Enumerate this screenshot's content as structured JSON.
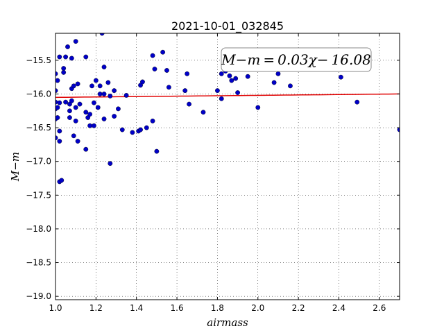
{
  "chart_data": {
    "type": "scatter",
    "title": "2021-10-01_032845",
    "xlabel": "airmass",
    "ylabel": "M−m",
    "xlim": [
      1.0,
      2.7
    ],
    "ylim": [
      -19.05,
      -15.1
    ],
    "x_ticks": [
      1.0,
      1.2,
      1.4,
      1.6,
      1.8,
      2.0,
      2.2,
      2.4,
      2.6
    ],
    "x_tick_labels": [
      "1.0",
      "1.2",
      "1.4",
      "1.6",
      "1.8",
      "2.0",
      "2.2",
      "2.4",
      "2.6"
    ],
    "y_ticks": [
      -15.5,
      -16.0,
      -16.5,
      -17.0,
      -17.5,
      -18.0,
      -18.5,
      -19.0
    ],
    "y_tick_labels": [
      "−15.5",
      "−16.0",
      "−16.5",
      "−17.0",
      "−17.5",
      "−18.0",
      "−18.5",
      "−19.0"
    ],
    "grid": true,
    "annotation": "M−m = 0.03χ− 16.08",
    "fit_line": {
      "slope": 0.03,
      "intercept": -16.08,
      "color": "#e00000"
    },
    "marker_color": "#0000c8",
    "points": [
      [
        1.0,
        -15.7
      ],
      [
        1.0,
        -15.95
      ],
      [
        1.0,
        -16.12
      ],
      [
        1.0,
        -16.22
      ],
      [
        1.0,
        -16.37
      ],
      [
        1.0,
        -16.65
      ],
      [
        1.01,
        -15.8
      ],
      [
        1.01,
        -16.2
      ],
      [
        1.01,
        -16.35
      ],
      [
        1.02,
        -15.45
      ],
      [
        1.02,
        -16.13
      ],
      [
        1.02,
        -16.55
      ],
      [
        1.02,
        -16.7
      ],
      [
        1.02,
        -17.3
      ],
      [
        1.03,
        -17.28
      ],
      [
        1.04,
        -15.62
      ],
      [
        1.04,
        -15.68
      ],
      [
        1.05,
        -15.45
      ],
      [
        1.05,
        -16.12
      ],
      [
        1.06,
        -15.3
      ],
      [
        1.07,
        -16.15
      ],
      [
        1.07,
        -16.25
      ],
      [
        1.07,
        -16.35
      ],
      [
        1.08,
        -15.47
      ],
      [
        1.08,
        -16.1
      ],
      [
        1.08,
        -15.92
      ],
      [
        1.09,
        -16.62
      ],
      [
        1.09,
        -15.88
      ],
      [
        1.1,
        -15.22
      ],
      [
        1.1,
        -16.2
      ],
      [
        1.1,
        -16.4
      ],
      [
        1.11,
        -16.7
      ],
      [
        1.11,
        -15.85
      ],
      [
        1.12,
        -16.15
      ],
      [
        1.15,
        -15.45
      ],
      [
        1.15,
        -16.27
      ],
      [
        1.15,
        -16.82
      ],
      [
        1.16,
        -16.35
      ],
      [
        1.17,
        -16.3
      ],
      [
        1.17,
        -16.47
      ],
      [
        1.18,
        -15.88
      ],
      [
        1.19,
        -16.47
      ],
      [
        1.19,
        -16.13
      ],
      [
        1.2,
        -15.8
      ],
      [
        1.21,
        -16.2
      ],
      [
        1.22,
        -15.88
      ],
      [
        1.22,
        -16.0
      ],
      [
        1.23,
        -15.1
      ],
      [
        1.24,
        -16.0
      ],
      [
        1.24,
        -16.37
      ],
      [
        1.24,
        -15.6
      ],
      [
        1.26,
        -15.83
      ],
      [
        1.27,
        -16.03
      ],
      [
        1.27,
        -17.03
      ],
      [
        1.29,
        -15.95
      ],
      [
        1.29,
        -16.33
      ],
      [
        1.31,
        -16.22
      ],
      [
        1.33,
        -16.53
      ],
      [
        1.35,
        -16.02
      ],
      [
        1.38,
        -16.57
      ],
      [
        1.41,
        -16.55
      ],
      [
        1.42,
        -16.53
      ],
      [
        1.42,
        -15.87
      ],
      [
        1.43,
        -15.82
      ],
      [
        1.45,
        -16.5
      ],
      [
        1.48,
        -16.4
      ],
      [
        1.48,
        -15.43
      ],
      [
        1.49,
        -15.63
      ],
      [
        1.5,
        -16.85
      ],
      [
        1.53,
        -15.38
      ],
      [
        1.55,
        -15.65
      ],
      [
        1.56,
        -15.9
      ],
      [
        1.64,
        -15.95
      ],
      [
        1.65,
        -15.7
      ],
      [
        1.66,
        -16.15
      ],
      [
        1.73,
        -16.27
      ],
      [
        1.8,
        -15.95
      ],
      [
        1.82,
        -16.07
      ],
      [
        1.82,
        -15.7
      ],
      [
        1.84,
        -15.66
      ],
      [
        1.86,
        -15.73
      ],
      [
        1.87,
        -15.8
      ],
      [
        1.89,
        -15.77
      ],
      [
        1.9,
        -15.98
      ],
      [
        1.95,
        -15.74
      ],
      [
        2.0,
        -16.2
      ],
      [
        2.08,
        -15.83
      ],
      [
        2.1,
        -15.7
      ],
      [
        2.16,
        -15.88
      ],
      [
        2.41,
        -15.75
      ],
      [
        2.49,
        -16.12
      ],
      [
        2.7,
        -16.53
      ]
    ]
  }
}
